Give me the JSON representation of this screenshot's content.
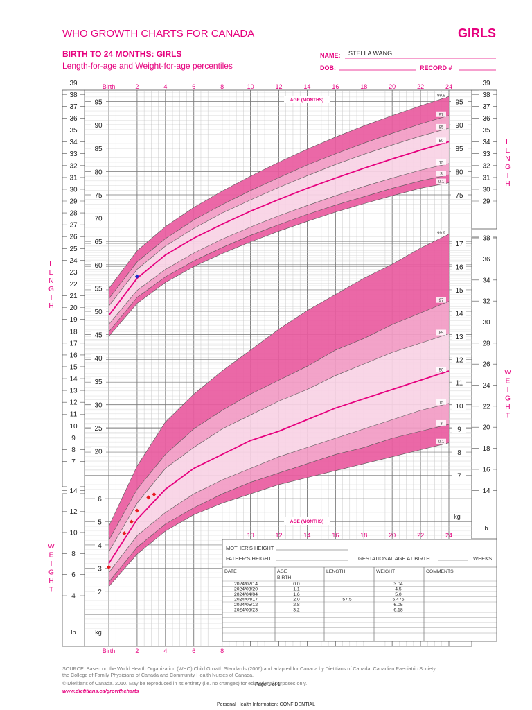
{
  "header": {
    "title": "WHO GROWTH CHARTS FOR CANADA",
    "sex_badge": "GIRLS",
    "subtitle": "BIRTH TO 24 MONTHS: GIRLS",
    "subtitle2": "Length-for-age and Weight-for-age percentiles",
    "name_label": "NAME:",
    "name_value": "STELLA WANG",
    "dob_label": "DOB:",
    "record_label": "RECORD #"
  },
  "axis": {
    "birth_label": "Birth",
    "age_months_label": "AGE (MONTHS)",
    "length_side_label": "LENGTH",
    "weight_side_label": "WEIGHT",
    "in_label": "in",
    "cm_label": "cm",
    "kg_label": "kg",
    "lb_label": "lb",
    "top_month_ticks": [
      "2",
      "4",
      "6",
      "8",
      "10",
      "12",
      "14",
      "16",
      "18",
      "20",
      "22",
      "24"
    ],
    "bottom_month_ticks": [
      "2",
      "4",
      "6",
      "8"
    ],
    "mid_month_ticks": [
      "10",
      "12",
      "14",
      "16",
      "18",
      "20",
      "22",
      "24"
    ],
    "left_in_ticks": [
      "39",
      "38",
      "37",
      "36",
      "35",
      "34",
      "33",
      "32",
      "31",
      "30",
      "29",
      "28",
      "27",
      "26",
      "25",
      "24",
      "23",
      "22",
      "21",
      "20",
      "19",
      "18",
      "17",
      "16",
      "15",
      "14",
      "13",
      "12",
      "11",
      "10",
      "9",
      "8",
      "7"
    ],
    "left_cm_ticks": [
      "95",
      "90",
      "85",
      "80",
      "75",
      "70",
      "65",
      "60",
      "55",
      "50",
      "45",
      "40",
      "35",
      "30",
      "25",
      "20"
    ],
    "right_cm_ticks": [
      "95",
      "90",
      "85",
      "80",
      "75"
    ],
    "right_in_ticks": [
      "39",
      "38",
      "37",
      "36",
      "35",
      "34",
      "33",
      "32",
      "31",
      "30",
      "29"
    ],
    "left_lb_ticks": [
      "14",
      "12",
      "10",
      "8",
      "6",
      "4"
    ],
    "left_kg_ticks": [
      "6",
      "5",
      "4",
      "3",
      "2"
    ],
    "right_kg_ticks": [
      "17",
      "16",
      "15",
      "14",
      "13",
      "12",
      "11",
      "10",
      "9",
      "8",
      "7"
    ],
    "right_lb_ticks": [
      "38",
      "36",
      "34",
      "32",
      "30",
      "28",
      "26",
      "24",
      "22",
      "20",
      "18",
      "16",
      "14"
    ]
  },
  "info_box": {
    "mother_height": "MOTHER'S HEIGHT",
    "father_height": "FATHER'S HEIGHT",
    "gestational_age": "GESTATIONAL AGE AT BIRTH",
    "weeks": "WEEKS",
    "columns": [
      "DATE",
      "AGE",
      "LENGTH",
      "WEIGHT",
      "COMMENTS"
    ],
    "birth_row_label": "BIRTH",
    "rows": [
      {
        "date": "2024/02/14",
        "age": "0.0",
        "length": "",
        "weight": "3.04",
        "comments": ""
      },
      {
        "date": "2024/03/20",
        "age": "1.1",
        "length": "",
        "weight": "4.5",
        "comments": ""
      },
      {
        "date": "2024/04/04",
        "age": "1.6",
        "length": "",
        "weight": "5.0",
        "comments": ""
      },
      {
        "date": "2024/04/17",
        "age": "2.0",
        "length": "57.5",
        "weight": "5.475",
        "comments": ""
      },
      {
        "date": "2024/05/12",
        "age": "2.8",
        "length": "",
        "weight": "6.05",
        "comments": ""
      },
      {
        "date": "2024/05/23",
        "age": "3.2",
        "length": "",
        "weight": "6.18",
        "comments": ""
      }
    ]
  },
  "footer": {
    "source": "SOURCE: Based on the World Health Organization (WHO) Child Growth Standards (2006) and adapted for Canada by Dietitians of Canada, Canadian Paediatric Society,",
    "source2": "the College of Family Physicians of Canada and Community Health Nurses of Canada.",
    "copyright": "© Dietitians of Canada. 2010. May be reproduced in its entirety (i.e. no changes) for educational purposes only.",
    "page": "Page 1 of 1",
    "url": "www.dietitians.ca/growthcharts",
    "confidential": "Personal Health Information: CONFIDENTIAL"
  },
  "colors": {
    "accent": "#e6007e",
    "band_dark": "#e95ba0",
    "band_mid": "#f29bc4",
    "band_light": "#f9d3e5",
    "patient_weight": "#e8181f",
    "patient_length": "#1a2ccc"
  },
  "chart_data": [
    {
      "type": "line",
      "title": "Length-for-age",
      "xlabel": "AGE (MONTHS)",
      "ylabel": "LENGTH",
      "x_unit": "months",
      "y_unit": "cm",
      "xlim": [
        0,
        24
      ],
      "ylim": [
        15,
        98
      ],
      "x": [
        0,
        2,
        4,
        6,
        8,
        10,
        12,
        14,
        16,
        18,
        20,
        22,
        24
      ],
      "series": [
        {
          "name": "0.1",
          "values": [
            44.6,
            51.7,
            56.2,
            59.6,
            62.4,
            64.9,
            67.2,
            69.3,
            71.3,
            73.1,
            74.8,
            76.4,
            77.6
          ]
        },
        {
          "name": "3",
          "values": [
            45.6,
            53.0,
            57.4,
            60.8,
            63.7,
            66.3,
            68.6,
            70.8,
            72.8,
            74.6,
            76.4,
            78.0,
            79.3
          ]
        },
        {
          "name": "15",
          "values": [
            47.2,
            54.5,
            59.0,
            62.5,
            65.5,
            68.1,
            70.5,
            72.7,
            74.8,
            76.8,
            78.6,
            80.3,
            81.7
          ]
        },
        {
          "name": "50",
          "values": [
            49.1,
            57.1,
            62.1,
            65.7,
            68.7,
            71.5,
            74.0,
            76.4,
            78.6,
            80.7,
            82.7,
            84.6,
            86.4
          ]
        },
        {
          "name": "85",
          "values": [
            51.1,
            59.0,
            64.0,
            67.8,
            71.1,
            73.9,
            76.6,
            79.1,
            81.5,
            83.7,
            85.7,
            87.6,
            89.3
          ]
        },
        {
          "name": "97",
          "values": [
            52.7,
            60.6,
            65.6,
            69.6,
            72.9,
            75.9,
            78.7,
            81.4,
            83.8,
            86.1,
            88.2,
            90.2,
            92.0
          ]
        },
        {
          "name": "99.9",
          "values": [
            54.9,
            63.0,
            68.2,
            72.3,
            75.8,
            79.0,
            82.0,
            84.8,
            87.4,
            89.8,
            92.0,
            94.1,
            96.1
          ]
        }
      ],
      "patient_points": [
        {
          "x": 2.0,
          "y": 57.5
        }
      ]
    },
    {
      "type": "line",
      "title": "Weight-for-age",
      "xlabel": "AGE (MONTHS)",
      "ylabel": "WEIGHT",
      "x_unit": "months",
      "y_unit": "kg",
      "xlim": [
        0,
        24
      ],
      "ylim": [
        0.2,
        18
      ],
      "x": [
        0,
        2,
        4,
        6,
        8,
        10,
        12,
        14,
        16,
        18,
        20,
        22,
        24
      ],
      "series": [
        {
          "name": "0.1",
          "values": [
            2.2,
            3.6,
            4.6,
            5.3,
            5.8,
            6.2,
            6.6,
            6.9,
            7.2,
            7.5,
            7.8,
            8.1,
            8.4
          ]
        },
        {
          "name": "3",
          "values": [
            2.4,
            3.9,
            4.9,
            5.6,
            6.2,
            6.7,
            7.1,
            7.5,
            7.9,
            8.2,
            8.6,
            8.9,
            9.2
          ]
        },
        {
          "name": "15",
          "values": [
            2.8,
            4.4,
            5.4,
            6.2,
            6.8,
            7.3,
            7.8,
            8.2,
            8.6,
            9.0,
            9.4,
            9.8,
            10.1
          ]
        },
        {
          "name": "50",
          "values": [
            3.2,
            5.1,
            6.4,
            7.3,
            7.9,
            8.5,
            8.9,
            9.4,
            9.9,
            10.3,
            10.7,
            11.1,
            11.5
          ]
        },
        {
          "name": "85",
          "values": [
            3.7,
            5.8,
            7.3,
            8.2,
            9.0,
            9.6,
            10.2,
            10.7,
            11.3,
            11.8,
            12.3,
            12.7,
            13.1
          ]
        },
        {
          "name": "97",
          "values": [
            4.2,
            6.4,
            7.9,
            9.0,
            9.8,
            10.5,
            11.1,
            11.7,
            12.4,
            12.9,
            13.5,
            14.0,
            14.5
          ]
        },
        {
          "name": "99.9",
          "values": [
            4.8,
            7.4,
            9.3,
            10.5,
            11.5,
            12.4,
            13.3,
            14.1,
            14.8,
            15.5,
            16.1,
            16.8,
            17.4
          ]
        }
      ],
      "patient_points": [
        {
          "x": 0.0,
          "y": 3.04
        },
        {
          "x": 1.1,
          "y": 4.5
        },
        {
          "x": 1.6,
          "y": 5.0
        },
        {
          "x": 2.0,
          "y": 5.475
        },
        {
          "x": 2.8,
          "y": 6.05
        },
        {
          "x": 3.2,
          "y": 6.18
        }
      ]
    }
  ]
}
